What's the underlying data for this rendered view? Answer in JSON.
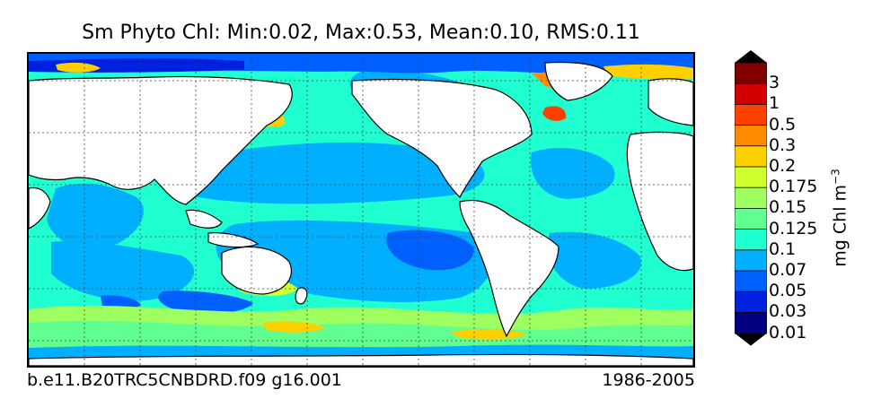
{
  "title": "Sm Phyto Chl: Min:0.02, Max:0.53, Mean:0.10, RMS:0.11",
  "footer": {
    "case": "b.e11.B20TRC5CNBDRD.f09 g16.001",
    "period": "1986-2005"
  },
  "colorbar": {
    "units": "mg Chl m",
    "units_exponent": "−3",
    "ticks": [
      "3",
      "1",
      "0.5",
      "0.3",
      "0.2",
      "0.175",
      "0.15",
      "0.125",
      "0.1",
      "0.07",
      "0.05",
      "0.03",
      "0.01"
    ],
    "colors": [
      "#800000",
      "#d40000",
      "#ff4000",
      "#ff8c00",
      "#ffd000",
      "#d0ff30",
      "#a0ff60",
      "#60ff90",
      "#20ffd0",
      "#00b0ff",
      "#0060ff",
      "#0020e0",
      "#000080"
    ],
    "extend": "both"
  },
  "map": {
    "projection": "cylindrical",
    "gridlines": "dotted",
    "land_color": "#ffffff",
    "dominant_field_color": "#20ffd0"
  }
}
